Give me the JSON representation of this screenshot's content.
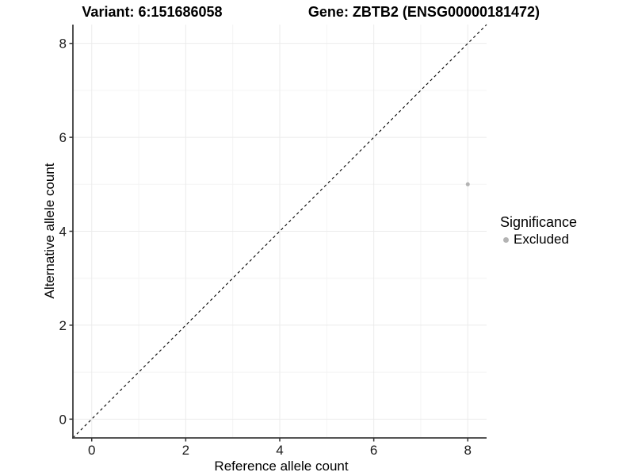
{
  "header": {
    "variant_title": "Variant: 6:151686058",
    "gene_title": "Gene: ZBTB2 (ENSG00000181472)"
  },
  "chart_data": {
    "type": "scatter",
    "title": "Variant: 6:151686058  /  Gene: ZBTB2 (ENSG00000181472)",
    "xlabel": "Reference allele count",
    "ylabel": "Alternative allele count",
    "xlim": [
      -0.4,
      8.4
    ],
    "ylim": [
      -0.4,
      8.4
    ],
    "xticks": [
      0,
      2,
      4,
      6,
      8
    ],
    "yticks": [
      0,
      2,
      4,
      6,
      8
    ],
    "minor_xticks": [
      1,
      3,
      5,
      7
    ],
    "minor_yticks": [
      1,
      3,
      5,
      7
    ],
    "grid": true,
    "identity_line": {
      "slope": 1,
      "intercept": 0,
      "style": "dashed",
      "color": "#000000"
    },
    "series": [
      {
        "name": "Excluded",
        "points": [
          {
            "x": 8,
            "y": 5
          }
        ],
        "color": "#b3b3b3"
      }
    ],
    "legend": {
      "title": "Significance",
      "position": "right",
      "items": [
        {
          "label": "Excluded",
          "color": "#b3b3b3"
        }
      ]
    },
    "colors": {
      "axis": "#3c3c3c",
      "tick": "#333333",
      "grid_major": "#ebebeb",
      "grid_minor": "#f4f4f4",
      "background": "#ffffff",
      "text": "#1a1a1a"
    }
  }
}
